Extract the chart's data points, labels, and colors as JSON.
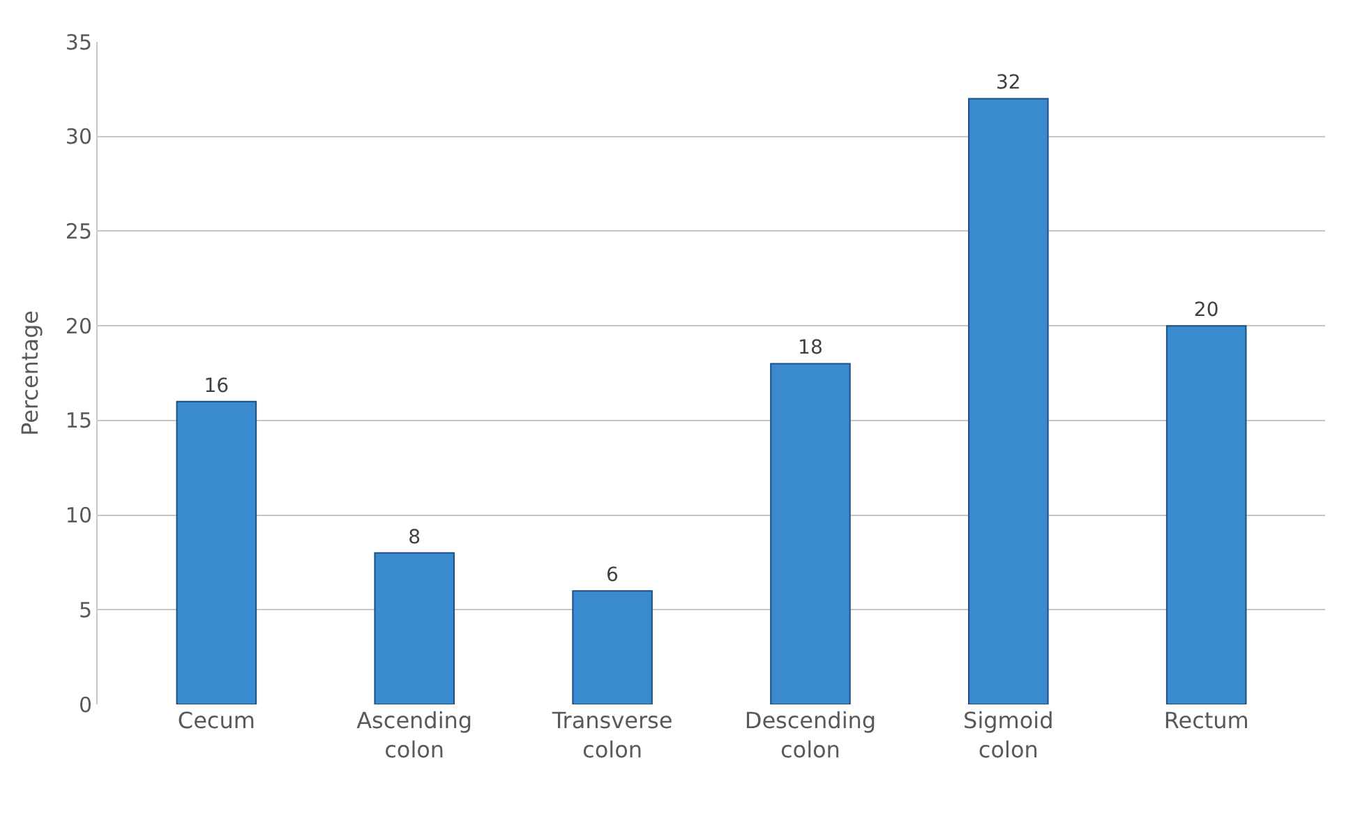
{
  "chart_data": {
    "type": "bar",
    "ylabel": "Percentage",
    "categories": [
      "Cecum",
      "Ascending colon",
      "Transverse colon",
      "Descending colon",
      "Sigmoid colon",
      "Rectum"
    ],
    "values": [
      16,
      8,
      6,
      18,
      32,
      20
    ],
    "color": "#3a8ad0",
    "ylim": [
      0,
      35
    ],
    "yticks": [
      0,
      5,
      10,
      15,
      20,
      25,
      30,
      35
    ],
    "grid": "y",
    "data_labels": true
  }
}
